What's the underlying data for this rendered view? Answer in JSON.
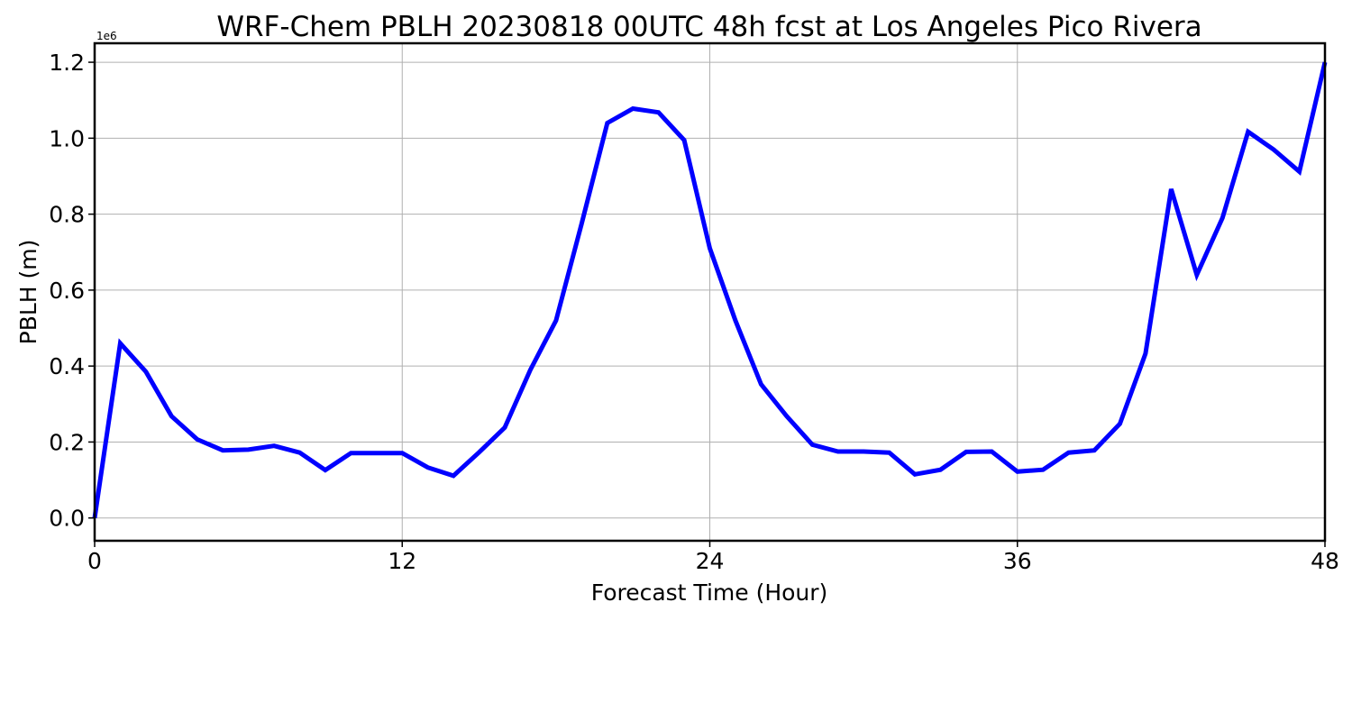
{
  "chart_data": {
    "type": "line",
    "title": "WRF-Chem PBLH  20230818 00UTC 48h fcst at Los Angeles Pico Rivera",
    "xlabel": "Forecast Time (Hour)",
    "ylabel": "PBLH  (m)",
    "y_offset_label": "1e6",
    "xlim": [
      0,
      48
    ],
    "ylim": [
      -0.06,
      1.25
    ],
    "xticks": [
      0,
      12,
      24,
      36,
      48
    ],
    "xtick_labels": [
      "0",
      "12",
      "24",
      "36",
      "48"
    ],
    "yticks": [
      0.0,
      0.2,
      0.4,
      0.6,
      0.8,
      1.0,
      1.2
    ],
    "ytick_labels": [
      "0.0",
      "0.2",
      "0.4",
      "0.6",
      "0.8",
      "1.0",
      "1.2"
    ],
    "grid": true,
    "color": "#0000ff",
    "series": [
      {
        "x": [
          0,
          1,
          2,
          3,
          4,
          5,
          6,
          7,
          8,
          9,
          10,
          11,
          12,
          13,
          14,
          15,
          16,
          17,
          18,
          19,
          20,
          21,
          22,
          23,
          24,
          25,
          26,
          27,
          28,
          29,
          30,
          31,
          32,
          33,
          34,
          35,
          36,
          37,
          38,
          39,
          40,
          41,
          42,
          43,
          44,
          45,
          46,
          47,
          48
        ],
        "values": [
          0.0,
          0.46,
          0.385,
          0.268,
          0.207,
          0.178,
          0.18,
          0.19,
          0.172,
          0.126,
          0.171,
          0.171,
          0.171,
          0.133,
          0.111,
          0.173,
          0.238,
          0.39,
          0.52,
          0.775,
          1.04,
          1.078,
          1.068,
          0.995,
          0.71,
          0.52,
          0.352,
          0.268,
          0.193,
          0.175,
          0.175,
          0.172,
          0.115,
          0.127,
          0.174,
          0.175,
          0.122,
          0.127,
          0.172,
          0.178,
          0.248,
          0.433,
          0.866,
          0.64,
          0.79,
          1.017,
          0.97,
          0.912,
          1.2
        ]
      }
    ]
  }
}
